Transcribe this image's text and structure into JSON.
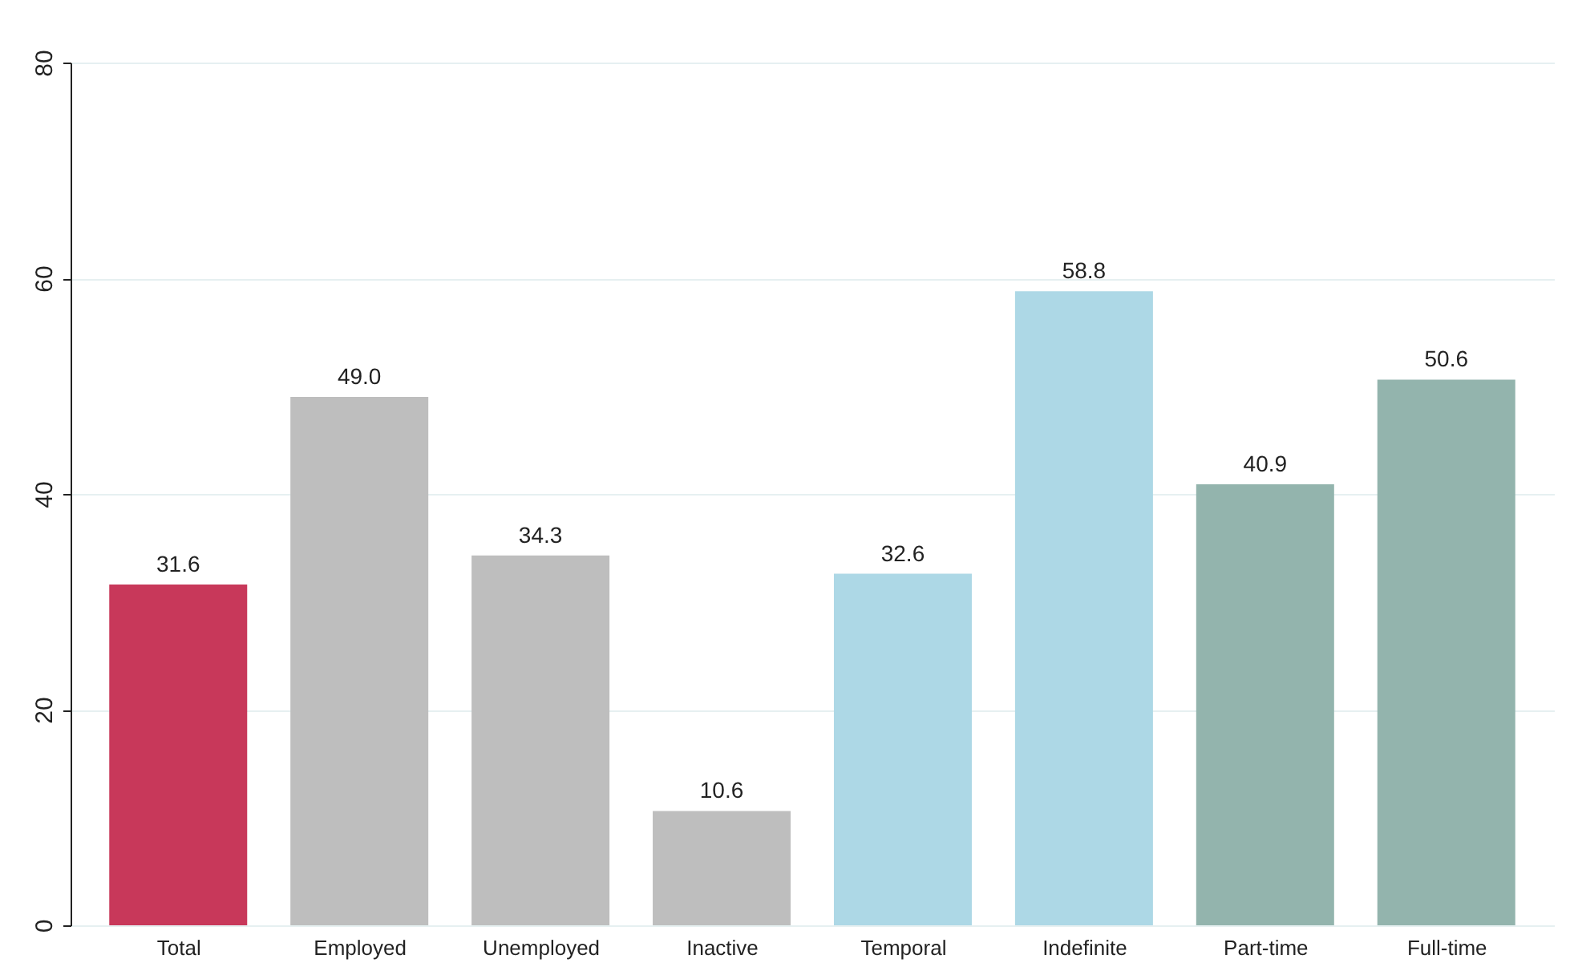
{
  "chart_data": {
    "type": "bar",
    "categories": [
      "Total",
      "Employed",
      "Unemployed",
      "Inactive",
      "Temporal",
      "Indefinite",
      "Part-time",
      "Full-time"
    ],
    "values": [
      31.6,
      49.0,
      34.3,
      10.6,
      32.6,
      58.8,
      40.9,
      50.6
    ],
    "colors": [
      "#c8385a",
      "#bebebe",
      "#bebebe",
      "#bebebe",
      "#add8e6",
      "#add8e6",
      "#93b4ad",
      "#93b4ad"
    ],
    "value_labels": [
      "31.6",
      "49.0",
      "34.3",
      "10.6",
      "32.6",
      "58.8",
      "40.9",
      "50.6"
    ],
    "ylim": [
      0,
      80
    ],
    "yticks": [
      0,
      20,
      40,
      60,
      80
    ],
    "grid": "y"
  }
}
